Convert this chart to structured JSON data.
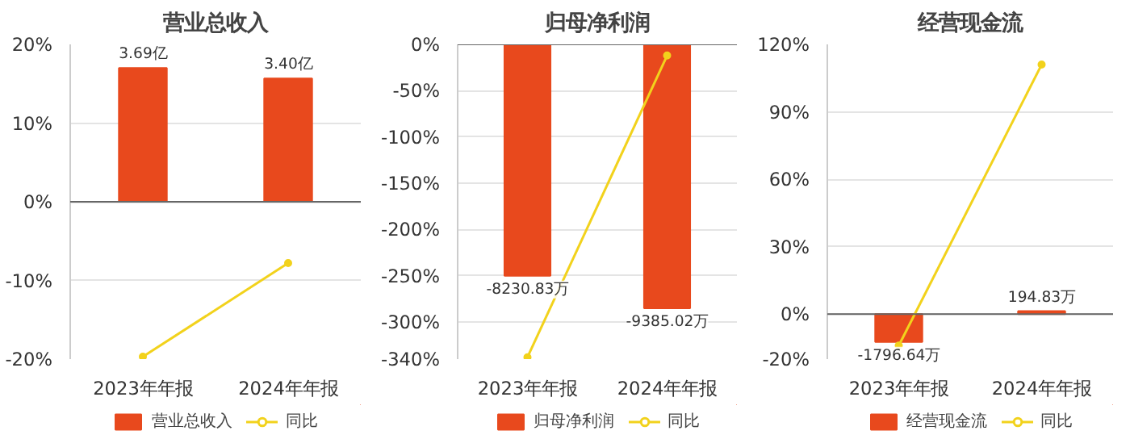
{
  "chart_data": [
    {
      "type": "bar",
      "title": "营业总收入",
      "categories": [
        "2023年年报",
        "2024年年报"
      ],
      "ylim": [
        -20,
        20
      ],
      "yticks": [
        {
          "value": -20,
          "label": "-20%"
        },
        {
          "value": -10,
          "label": "-10%"
        },
        {
          "value": 0,
          "label": "0%"
        },
        {
          "value": 10,
          "label": "10%"
        },
        {
          "value": 20,
          "label": "20%"
        }
      ],
      "y2lim": [
        -4.34,
        4.34
      ],
      "grid": "y",
      "legend": "bottom",
      "marker": "circle",
      "series": [
        {
          "name": "营业总收入",
          "axis": "y2",
          "color": "#e8491d",
          "values": [
            3.69,
            3.4
          ],
          "value_labels": [
            "3.69亿",
            "3.40亿"
          ]
        },
        {
          "name": "同比",
          "type": "line",
          "color": "#f2d21c",
          "values": [
            -19.7,
            -7.8
          ]
        }
      ]
    },
    {
      "type": "bar",
      "title": "归母净利润",
      "categories": [
        "2023年年报",
        "2024年年报"
      ],
      "ylim": [
        -340,
        0
      ],
      "yticks": [
        {
          "value": -340,
          "label": "-340%"
        },
        {
          "value": -300,
          "label": "-300%"
        },
        {
          "value": -250,
          "label": "-250%"
        },
        {
          "value": -200,
          "label": "-200%"
        },
        {
          "value": -150,
          "label": "-150%"
        },
        {
          "value": -100,
          "label": "-100%"
        },
        {
          "value": -50,
          "label": "-50%"
        },
        {
          "value": 0,
          "label": "0%"
        }
      ],
      "y2lim": [
        -11190,
        0
      ],
      "grid": "y",
      "legend": "bottom",
      "marker": "circle",
      "series": [
        {
          "name": "归母净利润",
          "axis": "y2",
          "color": "#e8491d",
          "values": [
            -8230.83,
            -9385.02
          ],
          "value_labels": [
            "-8230.83万",
            "-9385.02万"
          ]
        },
        {
          "name": "同比",
          "type": "line",
          "color": "#f2d21c",
          "values": [
            -338,
            -12
          ]
        }
      ]
    },
    {
      "type": "bar",
      "title": "经营现金流",
      "categories": [
        "2023年年报",
        "2024年年报"
      ],
      "ylim": [
        -20,
        120
      ],
      "yticks": [
        {
          "value": -20,
          "label": "-20%"
        },
        {
          "value": 0,
          "label": "0%"
        },
        {
          "value": 30,
          "label": "30%"
        },
        {
          "value": 60,
          "label": "60%"
        },
        {
          "value": 90,
          "label": "90%"
        },
        {
          "value": 120,
          "label": "120%"
        }
      ],
      "y2lim": [
        -2900,
        17400
      ],
      "grid": "y",
      "legend": "bottom",
      "marker": "circle",
      "series": [
        {
          "name": "经营现金流",
          "axis": "y2",
          "color": "#e8491d",
          "values": [
            -1796.64,
            194.83
          ],
          "value_labels": [
            "-1796.64万",
            "194.83万"
          ]
        },
        {
          "name": "同比",
          "type": "line",
          "color": "#f2d21c",
          "values": [
            -14,
            111
          ]
        }
      ]
    }
  ]
}
